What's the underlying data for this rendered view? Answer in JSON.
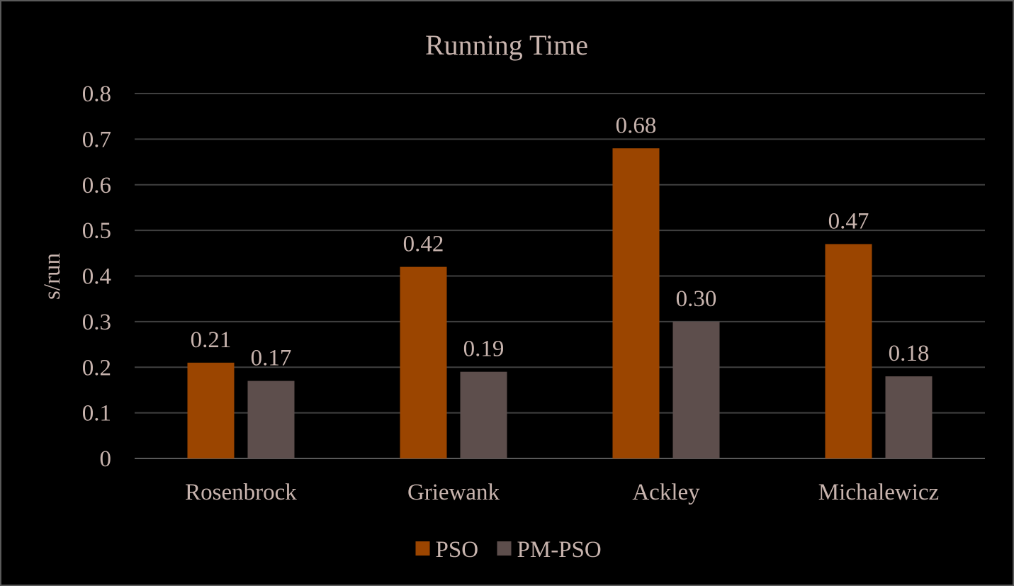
{
  "chart_data": {
    "type": "bar",
    "title": "Running Time",
    "ylabel": "s/run",
    "xlabel": "",
    "categories": [
      "Rosenbrock",
      "Griewank",
      "Ackley",
      "Michalewicz"
    ],
    "series": [
      {
        "name": "PSO",
        "color": "#9b4500",
        "values": [
          0.21,
          0.42,
          0.68,
          0.47
        ],
        "labels": [
          "0.21",
          "0.42",
          "0.68",
          "0.47"
        ]
      },
      {
        "name": "PM-PSO",
        "color": "#5d4e4c",
        "values": [
          0.17,
          0.19,
          0.3,
          0.18
        ],
        "labels": [
          "0.17",
          "0.19",
          "0.30",
          "0.18"
        ]
      }
    ],
    "ylim": [
      0,
      0.8
    ],
    "yticks": [
      0,
      0.1,
      0.2,
      0.3,
      0.4,
      0.5,
      0.6,
      0.7,
      0.8
    ],
    "ytick_labels": [
      "0",
      "0.1",
      "0.2",
      "0.3",
      "0.4",
      "0.5",
      "0.6",
      "0.7",
      "0.8"
    ],
    "grid": true,
    "legend_position": "bottom",
    "colors": {
      "background": "#000000",
      "text": "#c8b4ae",
      "grid": "#404040",
      "axis": "#595959"
    }
  }
}
